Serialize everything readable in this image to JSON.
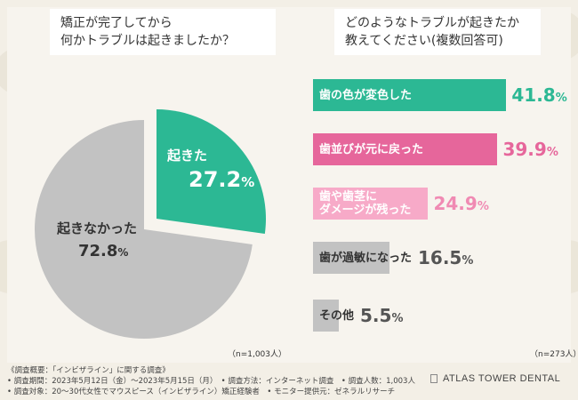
{
  "chart_data": [
    {
      "type": "pie",
      "title": "矯正が完了してから\n何かトラブルは起きましたか？",
      "sample_note": "（n=1,003人）",
      "slices": [
        {
          "label": "起きた",
          "value": 27.2,
          "value_text": "27.2",
          "unit": "%",
          "color": "#2cb894"
        },
        {
          "label": "起きなかった",
          "value": 72.8,
          "value_text": "72.8",
          "unit": "%",
          "color": "#c2c2c2"
        }
      ]
    },
    {
      "type": "bar",
      "orientation": "horizontal",
      "title": "どのようなトラブルが起きたか\n教えてください(複数回答可)",
      "sample_note": "（n=273人）",
      "xlim": [
        0,
        50
      ],
      "categories": [
        "歯の色が変色した",
        "歯並びが元に戻った",
        "歯や歯茎に\nダメージが残った",
        "歯が過敏になった",
        "その他"
      ],
      "values": [
        41.8,
        39.9,
        24.9,
        16.5,
        5.5
      ],
      "value_texts": [
        "41.8",
        "39.9",
        "24.9",
        "16.5",
        "5.5"
      ],
      "unit": "%",
      "colors": [
        "#2cb894",
        "#e6669b",
        "#f7aac8",
        "#c2c2c2",
        "#c2c2c2"
      ],
      "label_colors": [
        "#ffffff",
        "#ffffff",
        "#ffffff",
        "#333333",
        "#333333"
      ],
      "value_colors": [
        "#2cb894",
        "#e6669b",
        "#f08ab3",
        "#555555",
        "#555555"
      ]
    }
  ],
  "footer": {
    "lines": [
      "《調査概要：「インビザライン」に関する調査》",
      "• 調査期間：2023年5月12日（金）～2023年5月15日（月）　• 調査方法：インターネット調査　• 調査人数：1,003人",
      "• 調査対象：20～30代女性でマウスピース（インビザライン）矯正経験者　• モニター提供元：ゼネラルリサーチ"
    ],
    "brand": "ATLAS TOWER DENTAL"
  }
}
